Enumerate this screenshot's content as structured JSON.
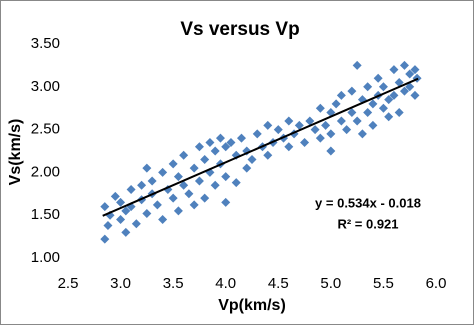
{
  "chart_data": {
    "type": "scatter",
    "title": "Vs versus Vp",
    "x_label": "Vp(km/s)",
    "y_label": "Vs(km/s)",
    "annotations": [
      "y = 0.534x - 0.018",
      "R² = 0.921"
    ],
    "series": [
      {
        "name": "Vs",
        "color": "#4f81bd",
        "x": [
          2.85,
          2.85,
          2.88,
          2.9,
          2.95,
          3.0,
          3.0,
          3.05,
          3.05,
          3.1,
          3.1,
          3.15,
          3.2,
          3.2,
          3.25,
          3.25,
          3.3,
          3.3,
          3.35,
          3.4,
          3.4,
          3.45,
          3.5,
          3.5,
          3.55,
          3.55,
          3.6,
          3.6,
          3.65,
          3.7,
          3.7,
          3.75,
          3.75,
          3.8,
          3.8,
          3.85,
          3.85,
          3.9,
          3.9,
          3.95,
          3.95,
          4.0,
          4.0,
          4.0,
          4.05,
          4.1,
          4.1,
          4.15,
          4.2,
          4.2,
          4.25,
          4.3,
          4.35,
          4.4,
          4.4,
          4.45,
          4.5,
          4.55,
          4.6,
          4.6,
          4.65,
          4.7,
          4.75,
          4.8,
          4.85,
          4.9,
          4.9,
          4.95,
          5.0,
          5.0,
          5.0,
          5.05,
          5.1,
          5.1,
          5.15,
          5.2,
          5.2,
          5.25,
          5.25,
          5.3,
          5.3,
          5.35,
          5.35,
          5.4,
          5.4,
          5.45,
          5.45,
          5.5,
          5.5,
          5.55,
          5.55,
          5.6,
          5.6,
          5.65,
          5.65,
          5.7,
          5.7,
          5.75,
          5.75,
          5.8,
          5.8,
          5.82
        ],
        "values": [
          1.22,
          1.6,
          1.38,
          1.5,
          1.72,
          1.45,
          1.65,
          1.3,
          1.55,
          1.8,
          1.6,
          1.4,
          1.85,
          1.68,
          2.05,
          1.52,
          1.9,
          1.75,
          1.62,
          2.0,
          1.45,
          1.8,
          2.1,
          1.7,
          1.95,
          1.55,
          1.85,
          2.2,
          1.75,
          2.05,
          1.62,
          2.3,
          1.9,
          2.15,
          1.7,
          2.35,
          2.0,
          2.25,
          1.85,
          2.4,
          2.1,
          2.3,
          1.95,
          1.65,
          2.35,
          2.2,
          1.88,
          2.4,
          2.25,
          2.05,
          2.15,
          2.45,
          2.3,
          2.55,
          2.2,
          2.35,
          2.5,
          2.4,
          2.6,
          2.3,
          2.45,
          2.55,
          2.35,
          2.6,
          2.5,
          2.75,
          2.4,
          2.55,
          2.7,
          2.25,
          2.45,
          2.8,
          2.6,
          2.9,
          2.5,
          2.7,
          2.95,
          2.6,
          3.25,
          2.85,
          2.45,
          2.7,
          3.0,
          2.8,
          2.55,
          2.9,
          3.1,
          2.75,
          3.0,
          2.65,
          2.85,
          3.2,
          2.9,
          3.05,
          2.7,
          3.25,
          2.95,
          3.15,
          3.0,
          3.2,
          2.9,
          3.1
        ]
      }
    ],
    "trendline": {
      "color": "#000000",
      "x": [
        2.83,
        5.83
      ],
      "y": [
        1.493,
        3.095
      ]
    },
    "xlim": [
      2.5,
      6.0
    ],
    "xticks": [
      2.5,
      {
        "value": 3,
        "label": "3.0"
      },
      3.5,
      {
        "value": 4,
        "label": "4.0"
      },
      4.5,
      {
        "value": 5,
        "label": "5.0"
      },
      5.5,
      {
        "value": 6,
        "label": "6.0"
      }
    ],
    "ylim": [
      1,
      3.5
    ],
    "yticks": [
      {
        "value": 1,
        "label": "1.00"
      },
      {
        "value": 1.5,
        "label": "1.50"
      },
      {
        "value": 2,
        "label": "2.00"
      },
      {
        "value": 2.5,
        "label": "2.50"
      },
      {
        "value": 3,
        "label": "3.00"
      },
      {
        "value": 3.5,
        "label": "3.50"
      }
    ],
    "grid": false
  }
}
